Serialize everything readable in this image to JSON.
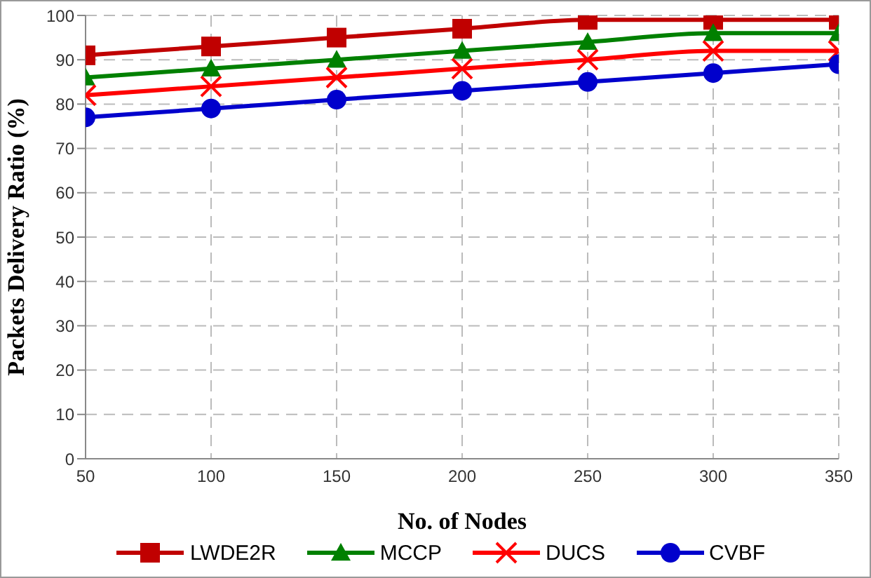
{
  "chart_data": {
    "type": "line",
    "xlabel": "No. of Nodes",
    "ylabel": "Packets Delivery Ratio (%)",
    "x": [
      50,
      100,
      150,
      200,
      250,
      300,
      350
    ],
    "xlim": [
      50,
      350
    ],
    "xticks": [
      50,
      100,
      150,
      200,
      250,
      300,
      350
    ],
    "ylim": [
      0,
      100
    ],
    "yticks": [
      0,
      10,
      20,
      30,
      40,
      50,
      60,
      70,
      80,
      90,
      100
    ],
    "grid": true,
    "legend": "bottom",
    "line_style": "solid",
    "series": [
      {
        "name": "LWDE2R",
        "color": "#c00000",
        "marker": "square",
        "values": [
          91,
          93,
          95,
          97,
          99,
          99,
          99
        ]
      },
      {
        "name": "MCCP",
        "color": "#008000",
        "marker": "triangle",
        "values": [
          86,
          88,
          90,
          92,
          94,
          96,
          96
        ]
      },
      {
        "name": "DUCS",
        "color": "#ff0000",
        "marker": "cross",
        "values": [
          82,
          84,
          86,
          88,
          90,
          92,
          92
        ]
      },
      {
        "name": "CVBF",
        "color": "#0000cc",
        "marker": "circle",
        "values": [
          77,
          79,
          81,
          83,
          85,
          87,
          89
        ]
      }
    ]
  }
}
